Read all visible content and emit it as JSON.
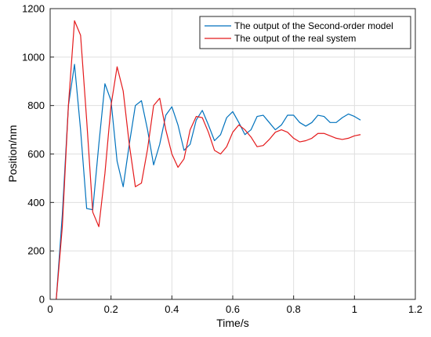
{
  "chart_data": {
    "type": "line",
    "xlabel": "Time/s",
    "ylabel": "Position/nm",
    "xlim": [
      0,
      1.2
    ],
    "ylim": [
      0,
      1200
    ],
    "xticks": [
      0,
      0.2,
      0.4,
      0.6,
      0.8,
      1,
      1.2
    ],
    "xtick_labels": [
      "0",
      "0.2",
      "0.4",
      "0.6",
      "0.8",
      "1",
      "1.2"
    ],
    "yticks": [
      0,
      200,
      400,
      600,
      800,
      1000,
      1200
    ],
    "ytick_labels": [
      "0",
      "200",
      "400",
      "600",
      "800",
      "1000",
      "1200"
    ],
    "grid": true,
    "legend_position": "top-right",
    "series": [
      {
        "name": "The output of the Second-order model",
        "color": "#0072BD",
        "x": [
          0.02,
          0.04,
          0.06,
          0.08,
          0.1,
          0.12,
          0.14,
          0.16,
          0.18,
          0.2,
          0.22,
          0.24,
          0.26,
          0.28,
          0.3,
          0.32,
          0.34,
          0.36,
          0.38,
          0.4,
          0.42,
          0.44,
          0.46,
          0.48,
          0.5,
          0.52,
          0.54,
          0.56,
          0.58,
          0.6,
          0.62,
          0.64,
          0.66,
          0.68,
          0.7,
          0.72,
          0.74,
          0.76,
          0.78,
          0.8,
          0.82,
          0.84,
          0.86,
          0.88,
          0.9,
          0.92,
          0.94,
          0.96,
          0.98,
          1.0,
          1.02
        ],
        "y": [
          0,
          350,
          800,
          970,
          700,
          375,
          370,
          640,
          890,
          820,
          570,
          465,
          640,
          800,
          820,
          700,
          555,
          640,
          760,
          795,
          720,
          615,
          640,
          740,
          780,
          720,
          655,
          680,
          750,
          775,
          730,
          680,
          700,
          755,
          760,
          730,
          700,
          720,
          760,
          760,
          730,
          715,
          730,
          760,
          755,
          730,
          730,
          750,
          765,
          755,
          740
        ]
      },
      {
        "name": "The output of the real system",
        "color": "#E41A1C",
        "x": [
          0.02,
          0.04,
          0.06,
          0.08,
          0.1,
          0.12,
          0.14,
          0.16,
          0.18,
          0.2,
          0.22,
          0.24,
          0.26,
          0.28,
          0.3,
          0.32,
          0.34,
          0.36,
          0.38,
          0.4,
          0.42,
          0.44,
          0.46,
          0.48,
          0.5,
          0.52,
          0.54,
          0.56,
          0.58,
          0.6,
          0.62,
          0.64,
          0.66,
          0.68,
          0.7,
          0.72,
          0.74,
          0.76,
          0.78,
          0.8,
          0.82,
          0.84,
          0.86,
          0.88,
          0.9,
          0.92,
          0.94,
          0.96,
          0.98,
          1.0,
          1.02
        ],
        "y": [
          0,
          300,
          800,
          1150,
          1090,
          740,
          360,
          300,
          520,
          800,
          960,
          860,
          640,
          465,
          480,
          620,
          800,
          830,
          700,
          600,
          545,
          580,
          700,
          755,
          750,
          690,
          615,
          600,
          630,
          690,
          720,
          700,
          670,
          630,
          635,
          660,
          690,
          700,
          690,
          665,
          650,
          655,
          665,
          685,
          685,
          675,
          665,
          660,
          665,
          675,
          680
        ]
      }
    ]
  }
}
